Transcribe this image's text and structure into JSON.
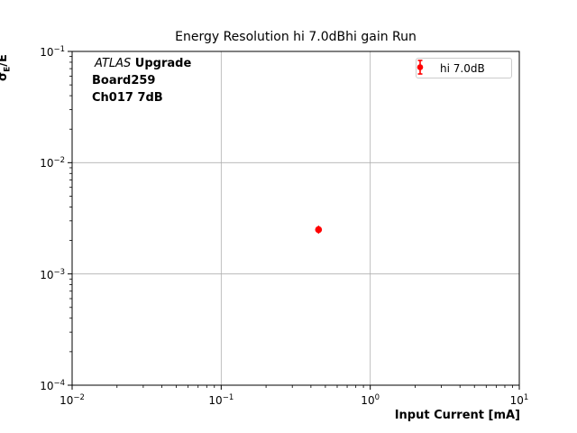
{
  "figure": {
    "title": "Energy Resolution hi 7.0dBhi gain Run",
    "xlabel": "Input Current [mA]",
    "ylabel": {
      "sigma": "σ",
      "sub": "E",
      "rest": "/E"
    },
    "annotation": {
      "atlas": "ATLAS",
      "upgrade": " Upgrade",
      "board": "Board259",
      "channel": "Ch017 7dB"
    },
    "legend": {
      "label": "hi 7.0dB",
      "marker_color": "#ff0000"
    }
  },
  "chart_data": {
    "type": "scatter",
    "title": "Energy Resolution hi 7.0dBhi gain Run",
    "xlabel": "Input Current [mA]",
    "ylabel": "σ_E/E",
    "xscale": "log",
    "yscale": "log",
    "xlim": [
      0.01,
      10
    ],
    "ylim": [
      0.0001,
      0.1
    ],
    "grid": true,
    "legend_position": "upper right",
    "series": [
      {
        "name": "hi 7.0dB",
        "marker": "circle-errorbar",
        "color": "#ff0000",
        "points": [
          {
            "x": 0.45,
            "y": 0.0025
          }
        ]
      }
    ],
    "x_ticks": [
      {
        "value": 0.01,
        "base": "10",
        "exp": "−2"
      },
      {
        "value": 0.1,
        "base": "10",
        "exp": "−1"
      },
      {
        "value": 1,
        "base": "10",
        "exp": "0"
      },
      {
        "value": 10,
        "base": "10",
        "exp": "1"
      }
    ],
    "y_ticks": [
      {
        "value": 0.1,
        "base": "10",
        "exp": "−1"
      },
      {
        "value": 0.01,
        "base": "10",
        "exp": "−2"
      },
      {
        "value": 0.001,
        "base": "10",
        "exp": "−3"
      },
      {
        "value": 0.0001,
        "base": "10",
        "exp": "−4"
      }
    ],
    "colors": {
      "grid": "#b0b0b0",
      "axis": "#000000",
      "background": "#ffffff",
      "marker": "#ff0000"
    }
  }
}
